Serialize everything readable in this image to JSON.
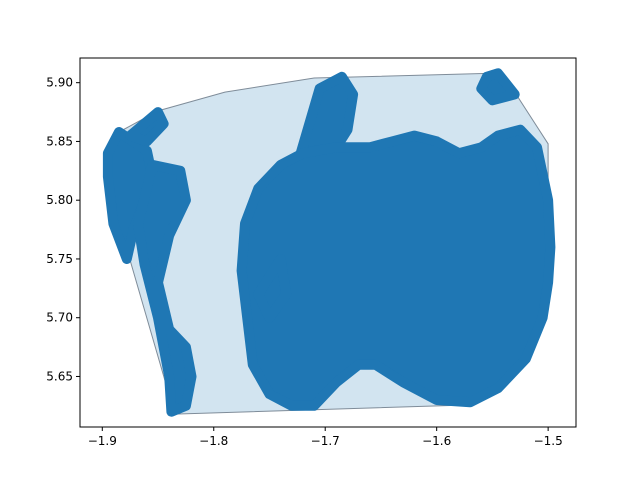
{
  "chart_data": {
    "type": "scatter",
    "title": "",
    "xlabel": "",
    "ylabel": "",
    "xlim": [
      -1.92,
      -1.475
    ],
    "ylim": [
      5.607,
      5.921
    ],
    "grid": false,
    "legend": "none",
    "xticks": [
      {
        "value": -1.9,
        "label": "−1.9"
      },
      {
        "value": -1.8,
        "label": "−1.8"
      },
      {
        "value": -1.7,
        "label": "−1.7"
      },
      {
        "value": -1.6,
        "label": "−1.6"
      },
      {
        "value": -1.5,
        "label": "−1.5"
      }
    ],
    "yticks": [
      {
        "value": 5.65,
        "label": "5.65"
      },
      {
        "value": 5.7,
        "label": "5.70"
      },
      {
        "value": 5.75,
        "label": "5.75"
      },
      {
        "value": 5.8,
        "label": "5.80"
      },
      {
        "value": 5.85,
        "label": "5.85"
      },
      {
        "value": 5.9,
        "label": "5.90"
      }
    ],
    "colors": {
      "points": "#1f77b4",
      "hull_fill": "#1f77b4",
      "hull_fill_opacity": 0.2,
      "hull_edge": "#7f8c99"
    },
    "hull": [
      [
        -1.885,
        5.858
      ],
      [
        -1.85,
        5.876
      ],
      [
        -1.79,
        5.892
      ],
      [
        -1.71,
        5.904
      ],
      [
        -1.55,
        5.908
      ],
      [
        -1.53,
        5.892
      ],
      [
        -1.5,
        5.848
      ],
      [
        -1.5,
        5.755
      ],
      [
        -1.505,
        5.72
      ],
      [
        -1.54,
        5.65
      ],
      [
        -1.566,
        5.626
      ],
      [
        -1.835,
        5.618
      ],
      [
        -1.88,
        5.765
      ],
      [
        -1.895,
        5.83
      ]
    ],
    "point_clusters": [
      {
        "outline": [
          [
            -1.895,
            5.84
          ],
          [
            -1.885,
            5.858
          ],
          [
            -1.86,
            5.842
          ],
          [
            -1.855,
            5.82
          ],
          [
            -1.862,
            5.8
          ],
          [
            -1.872,
            5.775
          ],
          [
            -1.878,
            5.75
          ],
          [
            -1.89,
            5.78
          ],
          [
            -1.895,
            5.82
          ]
        ]
      },
      {
        "outline": [
          [
            -1.875,
            5.855
          ],
          [
            -1.85,
            5.875
          ],
          [
            -1.845,
            5.865
          ],
          [
            -1.86,
            5.85
          ]
        ]
      },
      {
        "outline": [
          [
            -1.855,
            5.83
          ],
          [
            -1.83,
            5.825
          ],
          [
            -1.825,
            5.8
          ],
          [
            -1.84,
            5.77
          ],
          [
            -1.85,
            5.73
          ],
          [
            -1.84,
            5.69
          ],
          [
            -1.825,
            5.675
          ],
          [
            -1.82,
            5.65
          ],
          [
            -1.825,
            5.625
          ],
          [
            -1.838,
            5.62
          ],
          [
            -1.84,
            5.65
          ],
          [
            -1.85,
            5.7
          ],
          [
            -1.862,
            5.745
          ],
          [
            -1.868,
            5.78
          ],
          [
            -1.86,
            5.81
          ]
        ]
      },
      {
        "outline": [
          [
            -1.722,
            5.84
          ],
          [
            -1.705,
            5.895
          ],
          [
            -1.685,
            5.905
          ],
          [
            -1.675,
            5.89
          ],
          [
            -1.68,
            5.86
          ],
          [
            -1.69,
            5.845
          ]
        ]
      },
      {
        "outline": [
          [
            -1.555,
            5.905
          ],
          [
            -1.545,
            5.908
          ],
          [
            -1.53,
            5.89
          ],
          [
            -1.55,
            5.885
          ],
          [
            -1.56,
            5.895
          ]
        ]
      },
      {
        "outline": [
          [
            -1.76,
            5.81
          ],
          [
            -1.74,
            5.83
          ],
          [
            -1.72,
            5.84
          ],
          [
            -1.69,
            5.845
          ],
          [
            -1.675,
            5.845
          ],
          [
            -1.66,
            5.845
          ],
          [
            -1.64,
            5.85
          ],
          [
            -1.62,
            5.855
          ],
          [
            -1.6,
            5.85
          ],
          [
            -1.58,
            5.84
          ],
          [
            -1.56,
            5.845
          ],
          [
            -1.545,
            5.855
          ],
          [
            -1.525,
            5.86
          ],
          [
            -1.51,
            5.845
          ],
          [
            -1.5,
            5.8
          ],
          [
            -1.498,
            5.76
          ],
          [
            -1.5,
            5.73
          ],
          [
            -1.505,
            5.7
          ],
          [
            -1.52,
            5.665
          ],
          [
            -1.545,
            5.64
          ],
          [
            -1.57,
            5.628
          ],
          [
            -1.6,
            5.63
          ],
          [
            -1.63,
            5.645
          ],
          [
            -1.655,
            5.66
          ],
          [
            -1.67,
            5.66
          ],
          [
            -1.69,
            5.645
          ],
          [
            -1.71,
            5.625
          ],
          [
            -1.73,
            5.625
          ],
          [
            -1.75,
            5.635
          ],
          [
            -1.765,
            5.66
          ],
          [
            -1.77,
            5.7
          ],
          [
            -1.775,
            5.74
          ],
          [
            -1.772,
            5.78
          ]
        ]
      },
      {
        "outline": [
          [
            -1.76,
            5.72
          ],
          [
            -1.74,
            5.75
          ],
          [
            -1.735,
            5.72
          ],
          [
            -1.75,
            5.7
          ]
        ]
      }
    ]
  }
}
